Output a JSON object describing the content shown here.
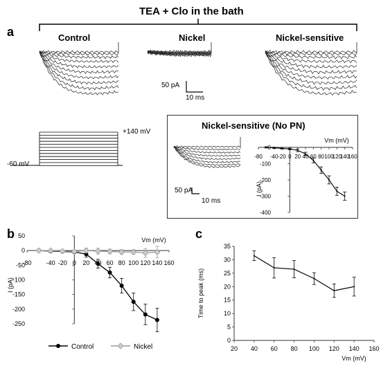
{
  "header": {
    "title": "TEA + Clo in the bath"
  },
  "panel_labels": {
    "a": "a",
    "b": "b",
    "c": "c"
  },
  "panel_a": {
    "traces": {
      "control": "Control",
      "nickel": "Nickel",
      "nickel_sensitive": "Nickel-sensitive"
    },
    "scale_bar": {
      "current": "50 pA",
      "time": "10 ms"
    },
    "protocol": {
      "top": "+140 mV",
      "hold": "-60 mV"
    },
    "inset": {
      "title": "Nickel-sensitive (No PN)",
      "scale_current": "50 pA",
      "scale_time": "10 ms"
    }
  },
  "chart_data": [
    {
      "id": "inset_iv",
      "type": "line",
      "title": "",
      "xlabel": "Vm (mV)",
      "ylabel": "I (pA)",
      "xlim": [
        -80,
        160
      ],
      "ylim": [
        -400,
        0
      ],
      "xticks": [
        -80,
        -40,
        -20,
        0,
        20,
        40,
        60,
        80,
        100,
        120,
        140,
        160
      ],
      "xtick_labels": [
        "-80",
        "-40",
        "-20",
        "0",
        "20",
        "40",
        "60",
        "80",
        "100",
        "120",
        "140",
        "160"
      ],
      "yticks": [
        0,
        -100,
        -200,
        -300,
        -400
      ],
      "series": [
        {
          "color": "#000000",
          "x": [
            -60,
            -40,
            -20,
            0,
            20,
            40,
            60,
            80,
            100,
            120,
            140
          ],
          "y": [
            0,
            -3,
            -6,
            -10,
            -18,
            -40,
            -80,
            -140,
            -200,
            -270,
            -300
          ],
          "err": [
            4,
            4,
            5,
            5,
            8,
            10,
            15,
            20,
            25,
            25,
            25
          ]
        }
      ]
    },
    {
      "id": "panel_b",
      "type": "line",
      "title": "",
      "xlabel": "Vm (mV)",
      "ylabel": "I (pA)",
      "xlim": [
        -80,
        160
      ],
      "ylim": [
        -250,
        50
      ],
      "xticks": [
        -80,
        -40,
        -20,
        0,
        20,
        40,
        60,
        80,
        100,
        120,
        140,
        160
      ],
      "xtick_labels": [
        "-80",
        "-40",
        "-20",
        "0",
        "20",
        "40",
        "60",
        "80",
        "100",
        "120",
        "140",
        "160"
      ],
      "yticks": [
        50,
        0,
        -50,
        -100,
        -150,
        -200,
        -250
      ],
      "legend_position": "bottom",
      "series": [
        {
          "name": "Control",
          "color": "#000000",
          "marker": "circle",
          "x": [
            -60,
            -40,
            -20,
            0,
            20,
            40,
            60,
            80,
            100,
            120,
            140
          ],
          "y": [
            0,
            -2,
            -3,
            -5,
            -12,
            -45,
            -75,
            -120,
            -175,
            -218,
            -237
          ],
          "err": [
            5,
            5,
            5,
            5,
            10,
            15,
            18,
            25,
            30,
            35,
            40
          ]
        },
        {
          "name": "Nickel",
          "color": "#999999",
          "marker": "diamond",
          "x": [
            -60,
            -40,
            -20,
            0,
            20,
            40,
            60,
            80,
            100,
            120,
            140
          ],
          "y": [
            0,
            0,
            -2,
            -3,
            0,
            -2,
            -3,
            -5,
            -5,
            -8,
            -5
          ],
          "err": [
            3,
            3,
            3,
            5,
            8,
            10,
            8,
            8,
            8,
            15,
            20
          ]
        }
      ]
    },
    {
      "id": "panel_c",
      "type": "line",
      "title": "",
      "xlabel": "Vm (mV)",
      "ylabel": "Time to peak (ms)",
      "xlim": [
        20,
        160
      ],
      "ylim": [
        0,
        35
      ],
      "xticks": [
        20,
        40,
        60,
        80,
        100,
        120,
        140,
        160
      ],
      "yticks": [
        0,
        5,
        10,
        15,
        20,
        25,
        30,
        35
      ],
      "series": [
        {
          "color": "#000000",
          "x": [
            40,
            60,
            80,
            100,
            120,
            140
          ],
          "y": [
            31.5,
            27,
            26.5,
            23,
            18.5,
            20
          ],
          "err": [
            1.8,
            3.8,
            3.2,
            2.2,
            2.5,
            3.5
          ]
        }
      ]
    }
  ]
}
